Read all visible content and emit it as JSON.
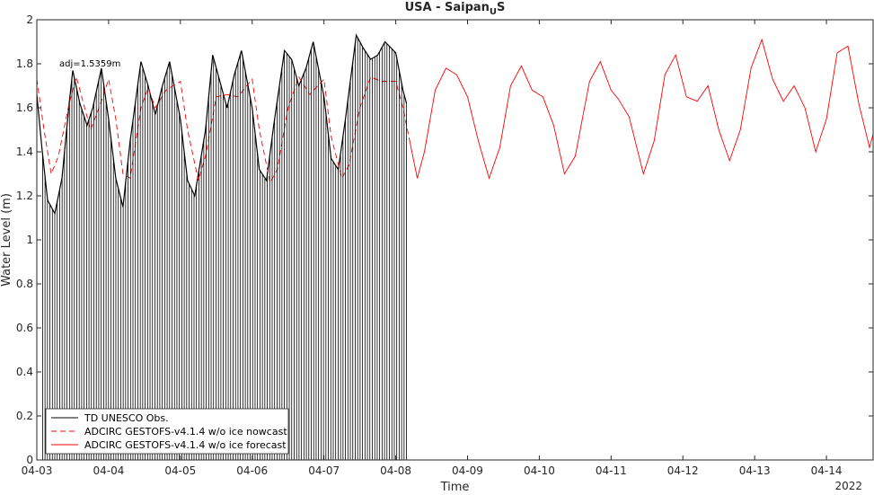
{
  "chart_data": {
    "type": "line",
    "title_main": "USA - Saipan",
    "title_sub": "U",
    "title_end": "S",
    "xlabel": "Time",
    "ylabel": "Water Level (m)",
    "year_label": "2022",
    "annotation": "adj=1.5359m",
    "xlim": [
      0,
      11.65
    ],
    "ylim": [
      0,
      2
    ],
    "x_ticks": [
      {
        "x": 0,
        "label": "04-03"
      },
      {
        "x": 1,
        "label": "04-04"
      },
      {
        "x": 2,
        "label": "04-05"
      },
      {
        "x": 3,
        "label": "04-06"
      },
      {
        "x": 4,
        "label": "04-07"
      },
      {
        "x": 5,
        "label": "04-08"
      },
      {
        "x": 6,
        "label": "04-09"
      },
      {
        "x": 7,
        "label": "04-10"
      },
      {
        "x": 8,
        "label": "04-11"
      },
      {
        "x": 9,
        "label": "04-12"
      },
      {
        "x": 10,
        "label": "04-13"
      },
      {
        "x": 11,
        "label": "04-14"
      }
    ],
    "y_ticks": [
      0,
      0.2,
      0.4,
      0.6,
      0.8,
      1,
      1.2,
      1.4,
      1.6,
      1.8,
      2
    ],
    "y_tick_labels": [
      "0",
      "0.2",
      "0.4",
      "0.6",
      "0.8",
      "1",
      "1.2",
      "1.4",
      "1.6",
      "1.8",
      "2"
    ],
    "legend": {
      "position": "bottom-left",
      "entries": [
        {
          "label": "TD UNESCO Obs.",
          "color": "#000000",
          "style": "solid"
        },
        {
          "label": "ADCIRC GESTOFS-v4.1.4 w/o ice nowcast",
          "color": "#ff0000",
          "style": "dashed"
        },
        {
          "label": "ADCIRC GESTOFS-v4.1.4 w/o ice forecast",
          "color": "#ff0000",
          "style": "solid"
        }
      ]
    },
    "series": [
      {
        "name": "TD UNESCO Obs.",
        "color": "#000000",
        "x": [
          0,
          0.07,
          0.15,
          0.25,
          0.35,
          0.45,
          0.5,
          0.6,
          0.7,
          0.78,
          0.9,
          1.0,
          1.1,
          1.2,
          1.3,
          1.45,
          1.55,
          1.65,
          1.75,
          1.85,
          2.0,
          2.1,
          2.2,
          2.35,
          2.45,
          2.55,
          2.65,
          2.75,
          2.85,
          3.0,
          3.1,
          3.2,
          3.3,
          3.45,
          3.55,
          3.65,
          3.75,
          3.85,
          4.0,
          4.1,
          4.2,
          4.3,
          4.45,
          4.55,
          4.65,
          4.75,
          4.85,
          5.0,
          5.1,
          5.15
        ],
        "y": [
          1.66,
          1.42,
          1.18,
          1.12,
          1.28,
          1.62,
          1.77,
          1.62,
          1.52,
          1.6,
          1.78,
          1.55,
          1.28,
          1.15,
          1.45,
          1.81,
          1.7,
          1.57,
          1.7,
          1.81,
          1.55,
          1.27,
          1.2,
          1.5,
          1.84,
          1.72,
          1.6,
          1.75,
          1.86,
          1.6,
          1.32,
          1.27,
          1.52,
          1.86,
          1.82,
          1.7,
          1.78,
          1.9,
          1.65,
          1.37,
          1.32,
          1.55,
          1.93,
          1.87,
          1.82,
          1.84,
          1.9,
          1.85,
          1.68,
          1.62
        ]
      },
      {
        "name": "ADCIRC GESTOFS-v4.1.4 w/o ice nowcast",
        "color": "#ff0000",
        "x": [
          0,
          0.1,
          0.2,
          0.3,
          0.45,
          0.55,
          0.65,
          0.75,
          0.9,
          1.0,
          1.1,
          1.2,
          1.3,
          1.45,
          1.55,
          1.65,
          1.8,
          2.0,
          2.1,
          2.25,
          2.35,
          2.5,
          2.65,
          2.8,
          3.0,
          3.1,
          3.25,
          3.35,
          3.5,
          3.65,
          3.8,
          4.0,
          4.1,
          4.25,
          4.35,
          4.5,
          4.65,
          4.8,
          5.0,
          5.1,
          5.2
        ],
        "y": [
          1.73,
          1.5,
          1.3,
          1.38,
          1.62,
          1.74,
          1.62,
          1.5,
          1.63,
          1.73,
          1.55,
          1.3,
          1.28,
          1.6,
          1.69,
          1.6,
          1.68,
          1.72,
          1.5,
          1.27,
          1.38,
          1.65,
          1.66,
          1.65,
          1.73,
          1.5,
          1.26,
          1.32,
          1.6,
          1.74,
          1.66,
          1.73,
          1.47,
          1.28,
          1.34,
          1.6,
          1.74,
          1.72,
          1.72,
          1.6,
          1.44
        ]
      },
      {
        "name": "ADCIRC GESTOFS-v4.1.4 w/o ice forecast",
        "color": "#ff0000",
        "x": [
          5.2,
          5.3,
          5.4,
          5.55,
          5.7,
          5.85,
          6.0,
          6.15,
          6.3,
          6.45,
          6.6,
          6.75,
          6.9,
          7.05,
          7.2,
          7.35,
          7.5,
          7.7,
          7.85,
          8.0,
          8.1,
          8.25,
          8.45,
          8.6,
          8.75,
          8.9,
          9.05,
          9.2,
          9.35,
          9.5,
          9.65,
          9.8,
          9.95,
          10.1,
          10.25,
          10.4,
          10.55,
          10.7,
          10.85,
          11.0,
          11.15,
          11.3,
          11.45,
          11.6,
          11.65
        ],
        "y": [
          1.44,
          1.28,
          1.4,
          1.68,
          1.78,
          1.75,
          1.65,
          1.45,
          1.28,
          1.42,
          1.7,
          1.79,
          1.68,
          1.65,
          1.52,
          1.3,
          1.38,
          1.72,
          1.81,
          1.68,
          1.64,
          1.56,
          1.3,
          1.45,
          1.75,
          1.84,
          1.65,
          1.63,
          1.7,
          1.5,
          1.36,
          1.5,
          1.78,
          1.91,
          1.73,
          1.63,
          1.7,
          1.6,
          1.4,
          1.55,
          1.85,
          1.88,
          1.62,
          1.42,
          1.48
        ]
      }
    ]
  }
}
